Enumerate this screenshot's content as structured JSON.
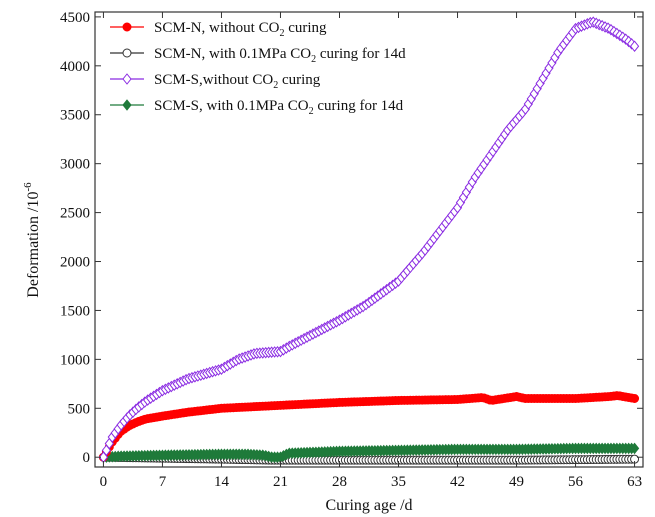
{
  "chart_data": {
    "type": "line",
    "xlabel": "Curing age /d",
    "ylabel": "Deformation /10",
    "ylabel_superscript": "-6",
    "xlim": [
      -1,
      64
    ],
    "ylim": [
      -100,
      4550
    ],
    "xticks": [
      0,
      7,
      14,
      21,
      28,
      35,
      42,
      49,
      56,
      63
    ],
    "yticks": [
      0,
      500,
      1000,
      1500,
      2000,
      2500,
      3000,
      3500,
      4000,
      4500
    ],
    "grid": false,
    "legend_position": "top-left",
    "series": [
      {
        "name": "SCM-N, without CO₂ curing",
        "legend_parts": [
          "SCM-N, without CO",
          "2",
          " curing"
        ],
        "color": "#ff0000",
        "marker": "filled-circle",
        "x": [
          0,
          1,
          2,
          3,
          4,
          5,
          7,
          10,
          14,
          21,
          28,
          35,
          42,
          45,
          46,
          49,
          50,
          56,
          60,
          61,
          63
        ],
        "y": [
          0,
          150,
          260,
          320,
          360,
          390,
          420,
          460,
          500,
          530,
          560,
          580,
          590,
          610,
          580,
          620,
          600,
          600,
          620,
          630,
          600
        ]
      },
      {
        "name": "SCM-N, with 0.1MPa CO₂ curing for 14d",
        "legend_parts": [
          "SCM-N, with 0.1MPa CO",
          "2",
          " curing for 14d"
        ],
        "color": "#333333",
        "marker": "open-circle",
        "x": [
          0,
          7,
          14,
          20,
          21,
          28,
          35,
          42,
          49,
          56,
          63
        ],
        "y": [
          0,
          -10,
          -20,
          -30,
          -30,
          -30,
          -30,
          -30,
          -30,
          -25,
          -20
        ]
      },
      {
        "name": "SCM-S,without CO₂ curing",
        "legend_parts": [
          "SCM-S,without CO",
          "2",
          " curing"
        ],
        "color": "#8a2be2",
        "marker": "open-diamond",
        "x": [
          0,
          1,
          2,
          3,
          4,
          5,
          7,
          10,
          14,
          16,
          18,
          21,
          22,
          24,
          28,
          31,
          35,
          38,
          42,
          44,
          46,
          48,
          50,
          52,
          54,
          56,
          58,
          60,
          62,
          63
        ],
        "y": [
          0,
          200,
          320,
          420,
          500,
          570,
          680,
          800,
          900,
          1000,
          1060,
          1080,
          1130,
          1220,
          1400,
          1550,
          1800,
          2100,
          2550,
          2850,
          3100,
          3350,
          3550,
          3850,
          4150,
          4380,
          4450,
          4380,
          4270,
          4200
        ]
      },
      {
        "name": "SCM-S, with 0.1MPa CO₂ curing for 14d",
        "legend_parts": [
          "SCM-S, with 0.1MPa CO",
          "2",
          " curing for 14d"
        ],
        "color": "#1f7a3a",
        "marker": "filled-diamond",
        "x": [
          0,
          2,
          7,
          14,
          17,
          19,
          20,
          21,
          22,
          28,
          35,
          42,
          49,
          56,
          63
        ],
        "y": [
          0,
          10,
          20,
          30,
          30,
          20,
          0,
          0,
          40,
          60,
          70,
          80,
          80,
          90,
          90
        ]
      }
    ]
  }
}
